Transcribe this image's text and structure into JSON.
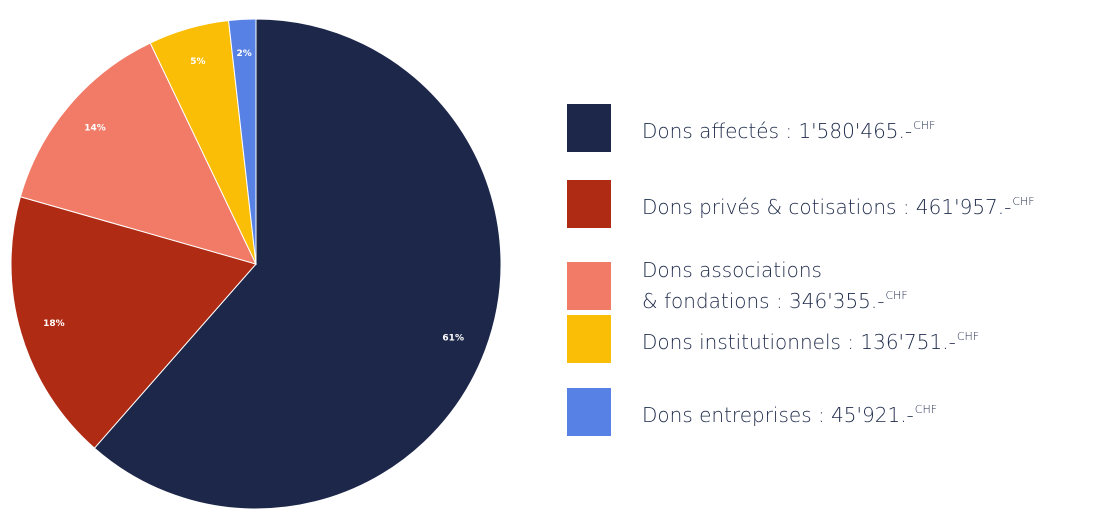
{
  "chart_data": {
    "type": "pie",
    "slices": [
      {
        "label": "Dons affectés",
        "percent_label": "61%",
        "value": 1580465,
        "color": "#1c2749"
      },
      {
        "label": "Dons privés & cotisations",
        "percent_label": "18%",
        "value": 461957,
        "color": "#b02b14"
      },
      {
        "label": "Dons associations & fondations",
        "percent_label": "14%",
        "value": 346355,
        "color": "#f17b67"
      },
      {
        "label": "Dons institutionnels",
        "percent_label": "5%",
        "value": 136751,
        "color": "#fbbe06"
      },
      {
        "label": "Dons entreprises",
        "percent_label": "2%",
        "value": 45921,
        "color": "#5781e4"
      }
    ],
    "legend_placement": "right"
  },
  "legend": {
    "items": [
      {
        "lines": [
          "Dons affectés : 1'580'465.-"
        ],
        "unit": "CHF",
        "color": "#1c2749"
      },
      {
        "lines": [
          "Dons privés & cotisations : 461'957.-"
        ],
        "unit": "CHF",
        "color": "#b02b14"
      },
      {
        "lines": [
          "Dons associations",
          "& fondations : 346'355.-"
        ],
        "unit": "CHF",
        "color": "#f17b67"
      },
      {
        "lines": [
          "Dons institutionnels : 136'751.-"
        ],
        "unit": "CHF",
        "color": "#fbbe06"
      },
      {
        "lines": [
          "Dons entreprises : 45'921.-"
        ],
        "unit": "CHF",
        "color": "#5781e4"
      }
    ]
  }
}
